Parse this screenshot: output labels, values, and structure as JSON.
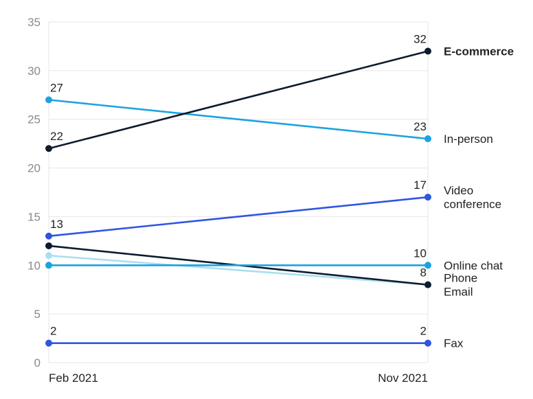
{
  "chart_data": {
    "type": "line",
    "x": [
      "Feb 2021",
      "Nov 2021"
    ],
    "ylim": [
      0,
      35
    ],
    "yticks": [
      0,
      5,
      10,
      15,
      20,
      25,
      30,
      35
    ],
    "grid": true,
    "series": [
      {
        "name": "E-commerce",
        "values": [
          22,
          32
        ],
        "color": "#0d1b2e",
        "bold": true,
        "labels": [
          "22",
          "32"
        ]
      },
      {
        "name": "In-person",
        "values": [
          27,
          23
        ],
        "color": "#1aa3e0",
        "labels": [
          "27",
          "23"
        ]
      },
      {
        "name": "Video conference",
        "values": [
          13,
          17
        ],
        "color": "#2f55e0",
        "labels": [
          "13",
          "17"
        ]
      },
      {
        "name": "Online chat",
        "values": [
          10,
          10
        ],
        "color": "#1aa3e0",
        "labels": [
          "",
          "10"
        ]
      },
      {
        "name": "Phone",
        "values": [
          12,
          8
        ],
        "color": "#0d1b2e",
        "labels": [
          "",
          "8"
        ]
      },
      {
        "name": "Email",
        "values": [
          11,
          8
        ],
        "color": "#a9def0",
        "labels": [
          "",
          ""
        ]
      },
      {
        "name": "Fax",
        "values": [
          2,
          2
        ],
        "color": "#2f55e0",
        "labels": [
          "2",
          "2"
        ]
      }
    ],
    "series_labels": [
      {
        "text": [
          "E-commerce"
        ],
        "anchor_value": 32,
        "bold": true
      },
      {
        "text": [
          "In-person"
        ],
        "anchor_value": 23
      },
      {
        "text": [
          "Video",
          "conference"
        ],
        "anchor_value": 17
      },
      {
        "text": [
          "Online chat"
        ],
        "anchor_value": 10
      },
      {
        "text": [
          "Phone",
          "Email"
        ],
        "anchor_value": 8
      },
      {
        "text": [
          "Fax"
        ],
        "anchor_value": 2
      }
    ]
  }
}
